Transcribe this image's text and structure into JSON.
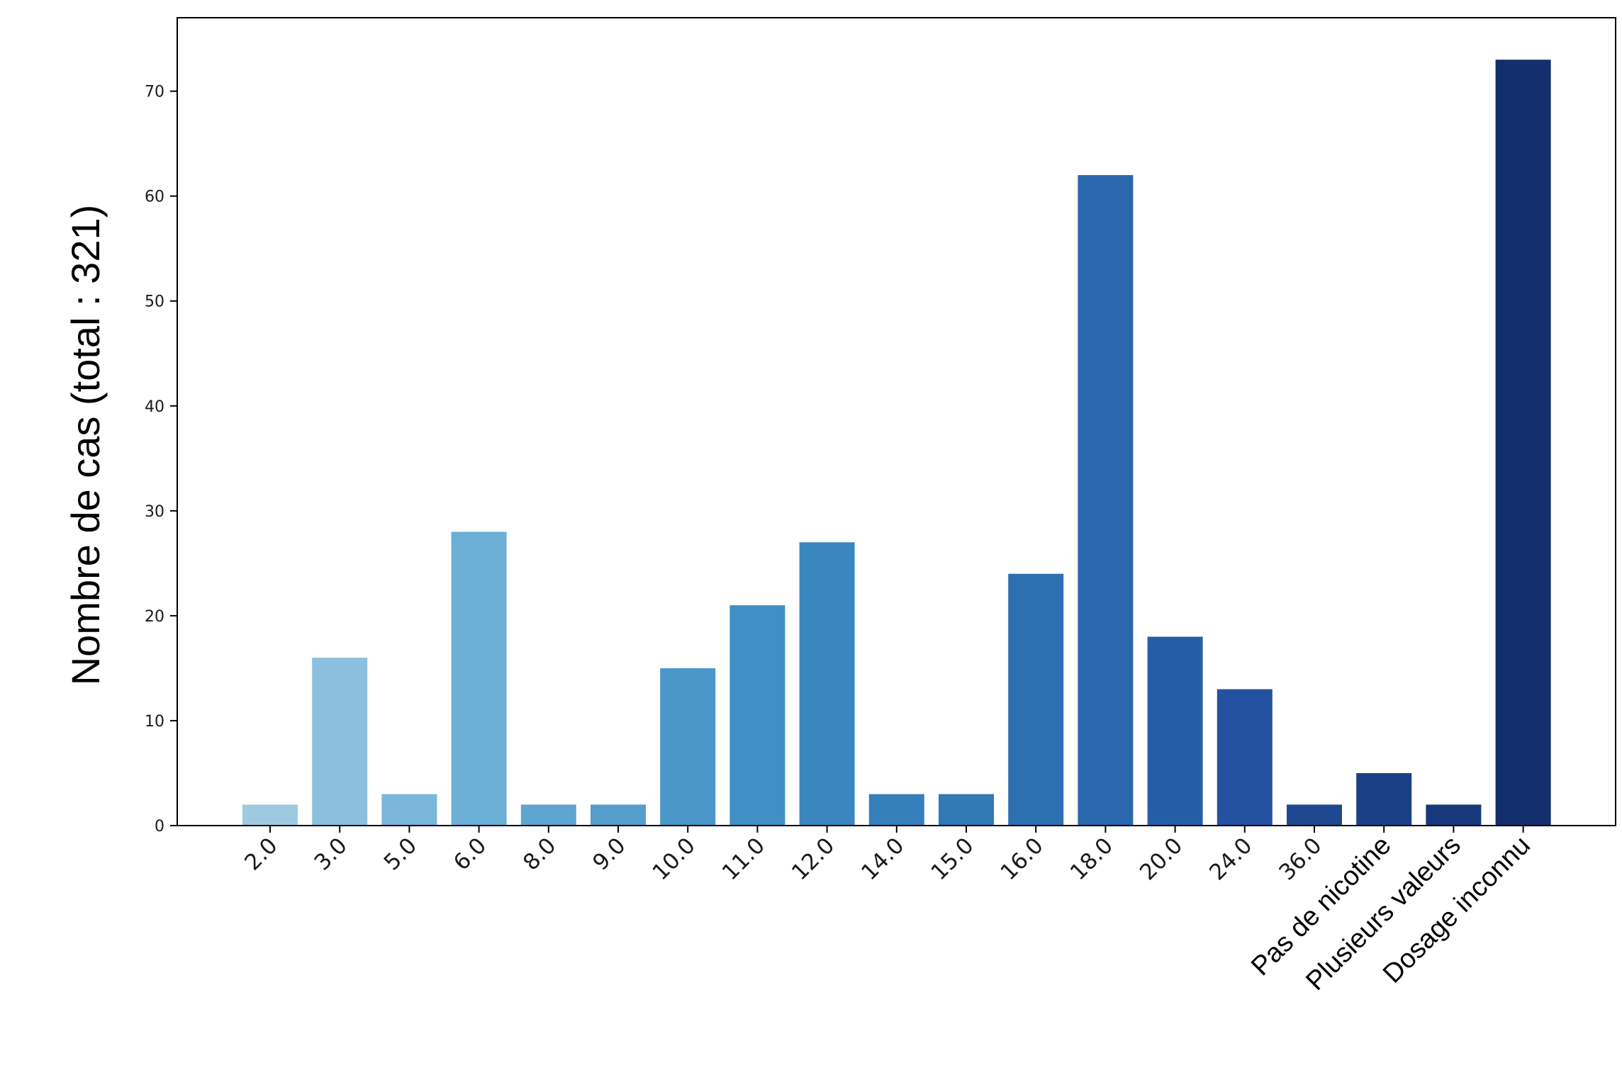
{
  "chart_data": {
    "type": "bar",
    "title": "",
    "xlabel": "",
    "ylabel": "Nombre de cas (total : 321)",
    "ylim": [
      0,
      77
    ],
    "yticks": [
      0,
      10,
      20,
      30,
      40,
      50,
      60,
      70
    ],
    "grid": false,
    "categories": [
      "2.0",
      "3.0",
      "5.0",
      "6.0",
      "8.0",
      "9.0",
      "10.0",
      "11.0",
      "12.0",
      "14.0",
      "15.0",
      "16.0",
      "18.0",
      "20.0",
      "24.0",
      "36.0",
      "Pas de nicotine",
      "Plusieurs valeurs",
      "Dosage inconnu"
    ],
    "values": [
      2,
      16,
      3,
      28,
      2,
      2,
      15,
      21,
      27,
      3,
      3,
      24,
      62,
      18,
      13,
      2,
      5,
      2,
      73
    ],
    "colors": [
      "#9ecae1",
      "#8bbfdd",
      "#7ab6da",
      "#6baed6",
      "#5fa5d1",
      "#549dcc",
      "#4a97c9",
      "#4090c5",
      "#3a87c0",
      "#3580bc",
      "#3179b7",
      "#2d70b2",
      "#2a67ad",
      "#265ea6",
      "#2252a0",
      "#1e4990",
      "#1a4186",
      "#17397c",
      "#132f6b"
    ]
  }
}
